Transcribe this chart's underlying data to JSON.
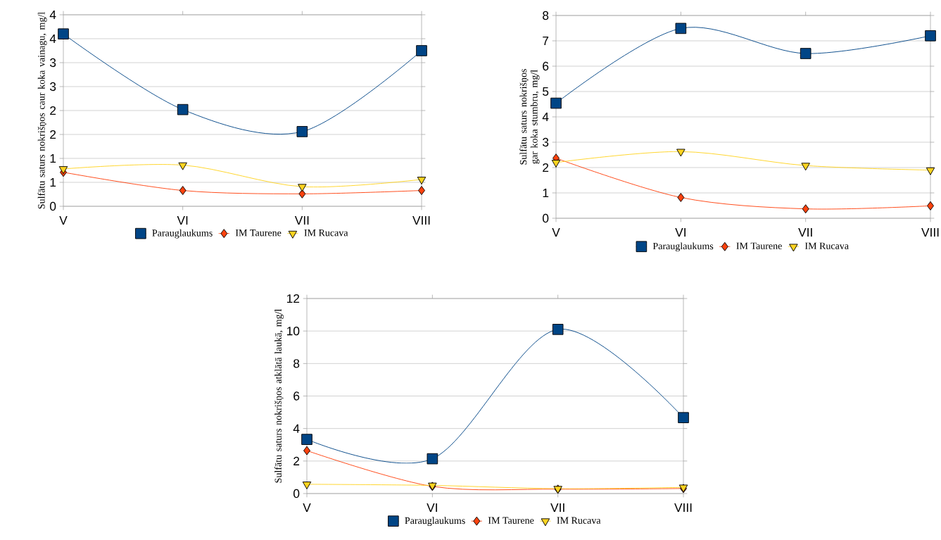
{
  "chart_data": [
    {
      "type": "line",
      "ylabel": "Sulfātu saturs nokrišņos caur koka vainagu, mg/l",
      "categories": [
        "V",
        "VI",
        "VII",
        "VIII"
      ],
      "ylim": [
        0,
        4
      ],
      "yticks": [
        0,
        {
          "value": 0.5,
          "label": "1"
        },
        1,
        {
          "value": 1.5,
          "label": "2"
        },
        2,
        {
          "value": 2.5,
          "label": "3"
        },
        3,
        {
          "value": 3.5,
          "label": "4"
        },
        4
      ],
      "grid": "y",
      "legend": "bottom",
      "series": [
        {
          "name": "Parauglaukums",
          "color": "#004586",
          "marker": "square",
          "values": [
            3.6,
            2.02,
            1.56,
            3.25
          ]
        },
        {
          "name": "IM Taurene",
          "color": "#ff420e",
          "marker": "diamond",
          "values": [
            0.71,
            0.33,
            0.26,
            0.33
          ]
        },
        {
          "name": "IM Rucava",
          "color": "#ffd320",
          "marker": "triangle",
          "values": [
            0.78,
            0.86,
            0.41,
            0.56
          ]
        }
      ]
    },
    {
      "type": "line",
      "ylabel": "Sulfātu saturs nokrišņos gar koka stumbru, mg/l",
      "categories": [
        "V",
        "VI",
        "VII",
        "VIII"
      ],
      "ylim": [
        0,
        8
      ],
      "yticks": [
        0,
        1,
        2,
        3,
        4,
        5,
        6,
        7,
        8
      ],
      "grid": "y",
      "legend": "bottom",
      "series": [
        {
          "name": "Parauglaukums",
          "color": "#004586",
          "marker": "square",
          "values": [
            4.54,
            7.49,
            6.5,
            7.2
          ]
        },
        {
          "name": "IM Taurene",
          "color": "#ff420e",
          "marker": "diamond",
          "values": [
            2.37,
            0.82,
            0.37,
            0.49
          ]
        },
        {
          "name": "IM Rucava",
          "color": "#ffd320",
          "marker": "triangle",
          "values": [
            2.2,
            2.63,
            2.08,
            1.9
          ]
        }
      ]
    },
    {
      "type": "line",
      "ylabel": "Sulfātu saturs nokrišņos atklātā laukā, mg/l",
      "categories": [
        "V",
        "VI",
        "VII",
        "VIII"
      ],
      "ylim": [
        0,
        12
      ],
      "yticks": [
        0,
        2,
        4,
        6,
        8,
        10,
        12
      ],
      "grid": "y",
      "legend": "bottom",
      "series": [
        {
          "name": "Parauglaukums",
          "color": "#004586",
          "marker": "square",
          "values": [
            3.33,
            2.14,
            10.1,
            4.67
          ]
        },
        {
          "name": "IM Taurene",
          "color": "#ff420e",
          "marker": "diamond",
          "values": [
            2.64,
            0.44,
            0.27,
            0.31
          ]
        },
        {
          "name": "IM Rucava",
          "color": "#ffd320",
          "marker": "triangle",
          "values": [
            0.57,
            0.5,
            0.3,
            0.38
          ]
        }
      ]
    }
  ]
}
